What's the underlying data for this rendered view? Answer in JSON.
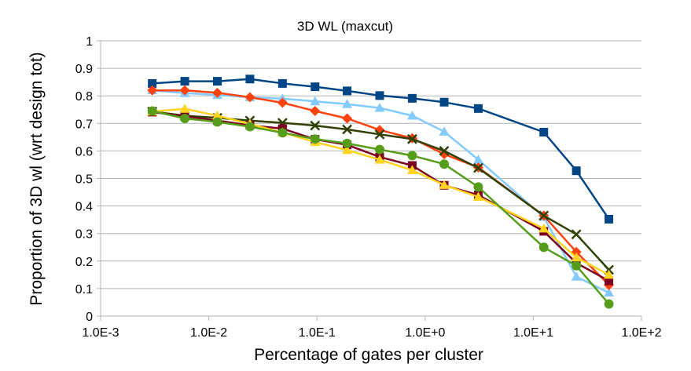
{
  "chart_data": {
    "type": "line",
    "title": "3D WL (maxcut)",
    "xlabel": "Percentage of gates per cluster",
    "ylabel": "Proportion of 3D wl (wrt design tot)",
    "x_scale": "log",
    "xlim": [
      0.001,
      100
    ],
    "ylim": [
      0,
      1
    ],
    "x_ticks": [
      0.001,
      0.01,
      0.1,
      1,
      10,
      100
    ],
    "x_tick_labels": [
      "1.0E-3",
      "1.0E-2",
      "1.0E-1",
      "1.0E+0",
      "1.0E+1",
      "1.0E+2"
    ],
    "y_ticks": [
      0,
      0.1,
      0.2,
      0.3,
      0.4,
      0.5,
      0.6,
      0.7,
      0.8,
      0.9,
      1
    ],
    "y_tick_labels": [
      "0",
      "0.1",
      "0.2",
      "0.3",
      "0.4",
      "0.5",
      "0.6",
      "0.7",
      "0.8",
      "0.9",
      "1"
    ],
    "grid": "horizontal",
    "legend": "none",
    "x": [
      0.003,
      0.006,
      0.012,
      0.024,
      0.048,
      0.096,
      0.19,
      0.38,
      0.76,
      1.5,
      3.1,
      12.5,
      25,
      50
    ],
    "series": [
      {
        "color": "#004586",
        "marker": "square",
        "values": [
          0.845,
          0.853,
          0.853,
          0.861,
          0.845,
          0.833,
          0.818,
          0.801,
          0.791,
          0.777,
          0.754,
          0.668,
          0.528,
          0.352
        ]
      },
      {
        "color": "#83caff",
        "marker": "triangle",
        "values": [
          0.82,
          0.81,
          0.803,
          0.795,
          0.79,
          0.78,
          0.77,
          0.756,
          0.728,
          0.67,
          0.568,
          0.36,
          0.143,
          0.085
        ]
      },
      {
        "color": "#ff420e",
        "marker": "diamond",
        "values": [
          0.82,
          0.82,
          0.811,
          0.795,
          0.775,
          0.745,
          0.718,
          0.676,
          0.646,
          0.588,
          0.54,
          0.365,
          0.233,
          0.113
        ]
      },
      {
        "color": "#314004",
        "marker": "x",
        "values": [
          0.743,
          0.728,
          0.72,
          0.71,
          0.702,
          0.692,
          0.678,
          0.66,
          0.643,
          0.6,
          0.538,
          0.365,
          0.297,
          0.168
        ]
      },
      {
        "color": "#7e0021",
        "marker": "square",
        "values": [
          0.741,
          0.726,
          0.71,
          0.693,
          0.681,
          0.642,
          0.622,
          0.578,
          0.547,
          0.475,
          0.44,
          0.308,
          0.193,
          0.128
        ]
      },
      {
        "color": "#ffd320",
        "marker": "triangle",
        "values": [
          0.743,
          0.753,
          0.728,
          0.698,
          0.667,
          0.632,
          0.603,
          0.568,
          0.53,
          0.476,
          0.433,
          0.318,
          0.213,
          0.15
        ]
      },
      {
        "color": "#579d1c",
        "marker": "circle",
        "values": [
          0.745,
          0.718,
          0.705,
          0.688,
          0.666,
          0.643,
          0.627,
          0.605,
          0.583,
          0.552,
          0.469,
          0.25,
          0.183,
          0.044
        ]
      }
    ]
  }
}
